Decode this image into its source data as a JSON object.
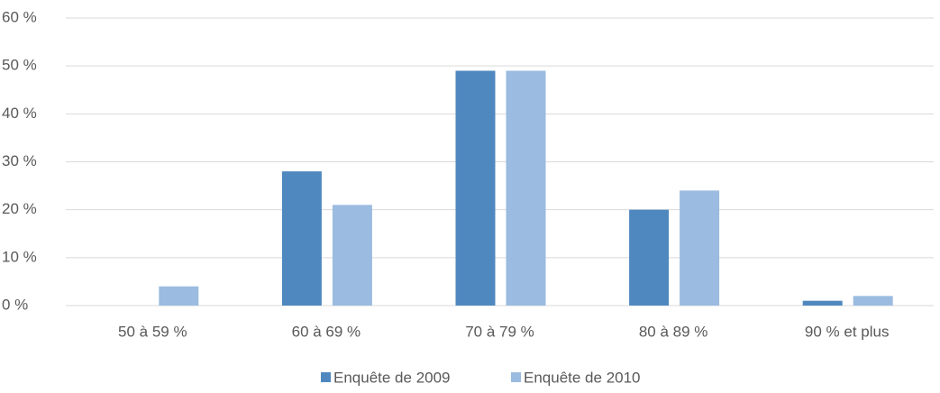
{
  "chart_data": {
    "type": "bar",
    "categories": [
      "50 à 59 %",
      "60 à 69 %",
      "70 à 79 %",
      "80 à 89 %",
      "90 % et plus"
    ],
    "series": [
      {
        "name": "Enquête de 2009",
        "color": "#4f88bf",
        "values": [
          0,
          28,
          49,
          20,
          1
        ]
      },
      {
        "name": "Enquête de 2010",
        "color": "#9bbbe0",
        "values": [
          4,
          21,
          49,
          24,
          2
        ]
      }
    ],
    "ylim": [
      0,
      60
    ],
    "yticks": [
      {
        "value": 0,
        "label": "0 %"
      },
      {
        "value": 10,
        "label": "10 %"
      },
      {
        "value": 20,
        "label": "20 %"
      },
      {
        "value": 30,
        "label": "30 %"
      },
      {
        "value": 40,
        "label": "40 %"
      },
      {
        "value": 50,
        "label": "50 %"
      },
      {
        "value": 60,
        "label": "60 %"
      }
    ],
    "grid": true,
    "legend": "bottom"
  }
}
